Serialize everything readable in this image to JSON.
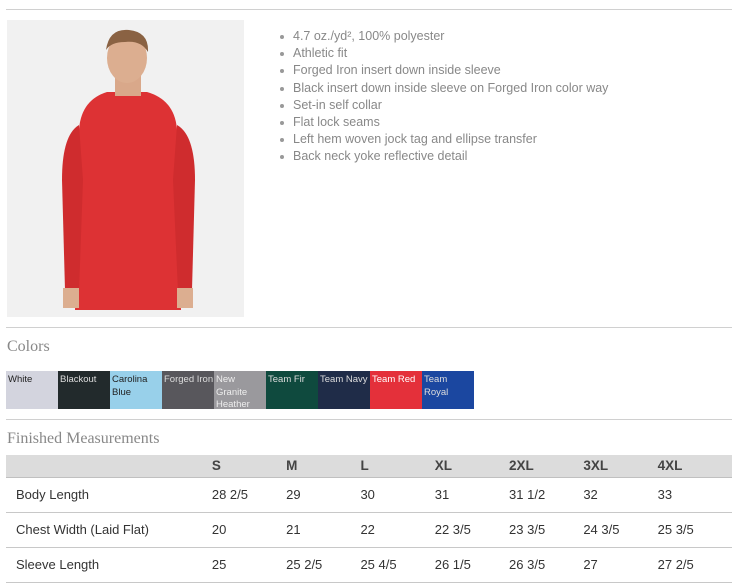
{
  "features": [
    "4.7 oz./yd², 100% polyester",
    "Athletic fit",
    "Forged Iron insert down inside sleeve",
    "Black insert down inside sleeve on Forged Iron color way",
    "Set-in self collar",
    "Flat lock seams",
    "Left hem woven jock tag and ellipse transfer",
    "Back neck yoke reflective detail"
  ],
  "colors_title": "Colors",
  "colors": [
    {
      "name": "White",
      "hex": "#d3d4de",
      "text": "#222"
    },
    {
      "name": "Blackout",
      "hex": "#222a2c",
      "text": "#ddd"
    },
    {
      "name": "Carolina Blue",
      "hex": "#98d0ea",
      "text": "#222"
    },
    {
      "name": "Forged Iron",
      "hex": "#58575c",
      "text": "#ddd"
    },
    {
      "name": "New Granite Heather",
      "hex": "#9a999d",
      "text": "#eee"
    },
    {
      "name": "Team Fir",
      "hex": "#0f4a3e",
      "text": "#ddd"
    },
    {
      "name": "Team Navy",
      "hex": "#1f2c48",
      "text": "#ddd"
    },
    {
      "name": "Team Red",
      "hex": "#e4303a",
      "text": "#fff"
    },
    {
      "name": "Team Royal",
      "hex": "#1b47a0",
      "text": "#ddd"
    }
  ],
  "measurements_title": "Finished Measurements",
  "table": {
    "headers": [
      "",
      "S",
      "M",
      "L",
      "XL",
      "2XL",
      "3XL",
      "4XL"
    ],
    "rows": [
      [
        "Body Length",
        "28 2/5",
        "29",
        "30",
        "31",
        "31 1/2",
        "32",
        "33"
      ],
      [
        "Chest Width (Laid Flat)",
        "20",
        "21",
        "22",
        "22 3/5",
        "23 3/5",
        "24 3/5",
        "25 3/5"
      ],
      [
        "Sleeve Length",
        "25",
        "25 2/5",
        "25 4/5",
        "26 1/5",
        "26 3/5",
        "27",
        "27 2/5"
      ]
    ]
  }
}
